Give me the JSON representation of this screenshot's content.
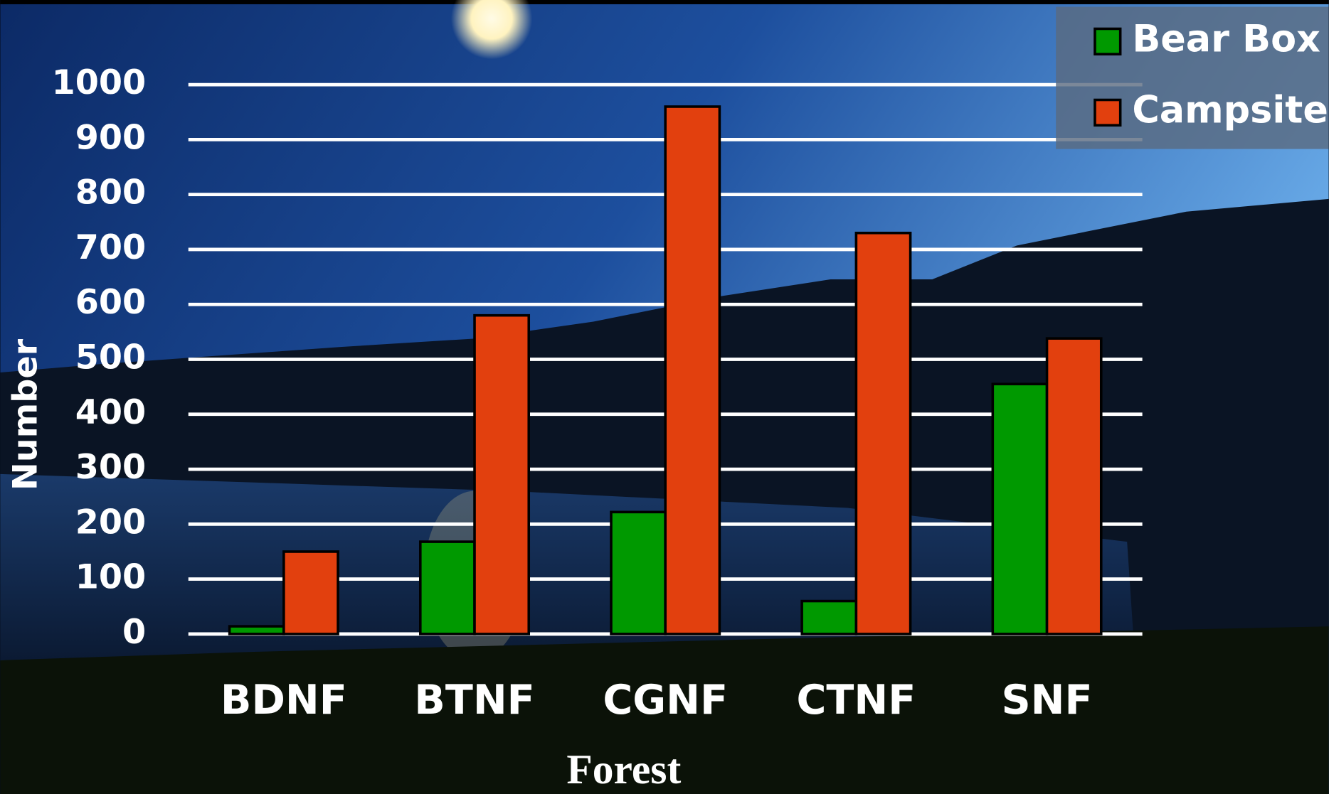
{
  "chart_data": {
    "type": "bar",
    "x_label": "Forest",
    "y_label": "Number",
    "categories": [
      "BDNF",
      "BTNF",
      "CGNF",
      "CTNF",
      "SNF"
    ],
    "series": [
      {
        "name": "Bear Box",
        "color": "#009900",
        "values": [
          14,
          168,
          222,
          60,
          455
        ]
      },
      {
        "name": "Campsite",
        "color": "#e2400e",
        "values": [
          150,
          580,
          960,
          730,
          538
        ]
      }
    ],
    "ylim": [
      0,
      1000
    ],
    "yticks": [
      0,
      100,
      200,
      300,
      400,
      500,
      600,
      700,
      800,
      900,
      1000
    ],
    "grid": true,
    "legend": "top-right"
  }
}
